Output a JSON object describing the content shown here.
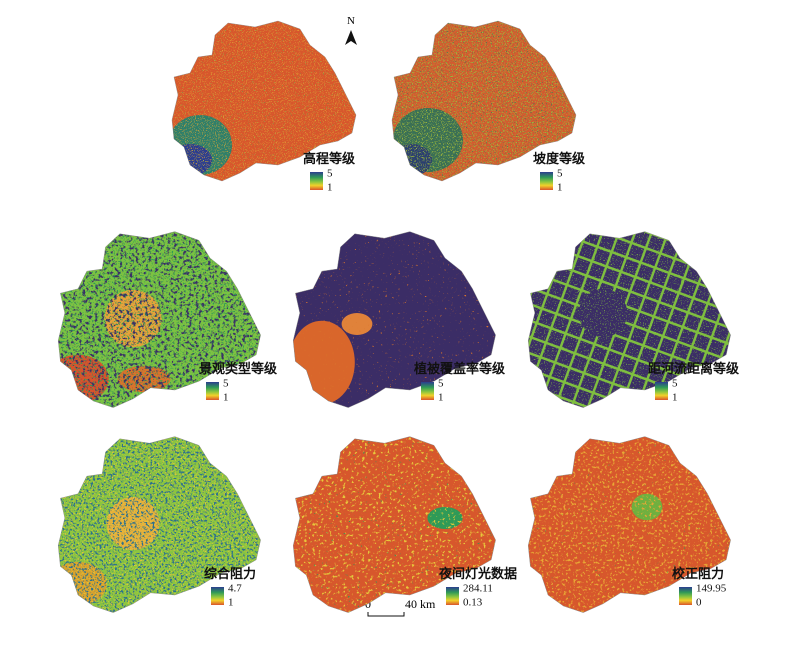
{
  "north_label": "N",
  "scale_bar": {
    "start": "0",
    "end": "40 km"
  },
  "panels": [
    {
      "title": "高程等级",
      "legend_max": "5",
      "legend_min": "1"
    },
    {
      "title": "坡度等级",
      "legend_max": "5",
      "legend_min": "1"
    },
    {
      "title": "景观类型等级",
      "legend_max": "5",
      "legend_min": "1"
    },
    {
      "title": "植被覆盖率等级",
      "legend_max": "5",
      "legend_min": "1"
    },
    {
      "title": "距河流距离等级",
      "legend_max": "5",
      "legend_min": "1"
    },
    {
      "title": "综合阻力",
      "legend_max": "4.7",
      "legend_min": "1"
    },
    {
      "title": "夜间灯光数据",
      "legend_max": "284.11",
      "legend_min": "0.13"
    },
    {
      "title": "校正阻力",
      "legend_max": "149.95",
      "legend_min": "0"
    }
  ]
}
